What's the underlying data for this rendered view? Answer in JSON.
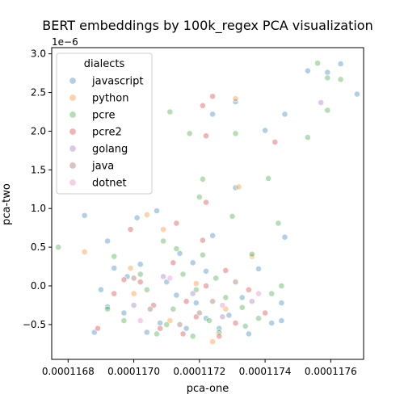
{
  "chart_data": {
    "type": "scatter",
    "title": "BERT embeddings by 100k_regex PCA visualization",
    "xlabel": "pca-one",
    "ylabel": "pca-two",
    "y_scale_note": "1e−6",
    "xlim": [
      0.00011675,
      0.0001177
    ],
    "ylim": [
      -9.5e-07,
      3.08e-06
    ],
    "xticks": [
      0.0001168,
      0.000117,
      0.0001172,
      0.0001174,
      0.0001176
    ],
    "xtick_labels": [
      "0.0001168",
      "0.0001170",
      "0.0001172",
      "0.0001174",
      "0.0001176"
    ],
    "yticks": [
      -5e-07,
      0.0,
      5e-07,
      1e-06,
      1.5e-06,
      2e-06,
      2.5e-06,
      3e-06
    ],
    "ytick_labels": [
      "−0.5",
      "0.0",
      "0.5",
      "1.0",
      "1.5",
      "2.0",
      "2.5",
      "3.0"
    ],
    "legend": {
      "title": "dialects",
      "placement": "top-left"
    },
    "series": [
      {
        "name": "javascript",
        "color": "#1f77b4",
        "points": [
          [
            0.00011763,
            2.87e-06
          ],
          [
            0.00011759,
            2.76e-06
          ],
          [
            0.00011768,
            2.48e-06
          ],
          [
            0.00011753,
            2.78e-06
          ],
          [
            0.00011731,
            2.38e-06
          ],
          [
            0.00011724,
            2.22e-06
          ],
          [
            0.0001174,
            2.01e-06
          ],
          [
            0.00011746,
            2.22e-06
          ],
          [
            0.00011731,
            1.27e-06
          ],
          [
            0.00011746,
            6.3e-07
          ],
          [
            0.00011701,
            8.8e-07
          ],
          [
            0.00011685,
            9.1e-07
          ],
          [
            0.00011707,
            9.7e-07
          ],
          [
            0.00011724,
            6.5e-07
          ],
          [
            0.00011692,
            5.8e-07
          ],
          [
            0.00011714,
            4.2e-07
          ],
          [
            0.00011702,
            2.8e-07
          ],
          [
            0.00011722,
            1.9e-07
          ],
          [
            0.00011738,
            2.2e-07
          ],
          [
            0.0001169,
            -5e-08
          ],
          [
            0.00011697,
            -3.5e-07
          ],
          [
            0.00011708,
            -4.8e-07
          ],
          [
            0.00011719,
            -2.2e-07
          ],
          [
            0.00011729,
            -3.8e-07
          ],
          [
            0.00011735,
            -6.2e-07
          ],
          [
            0.00011742,
            -4.8e-07
          ],
          [
            0.00011745,
            -4.5e-07
          ],
          [
            0.00011745,
            -2.2e-07
          ],
          [
            0.00011688,
            -6e-07
          ],
          [
            0.00011692,
            -2.7e-07
          ],
          [
            0.00011713,
            -1.2e-07
          ],
          [
            0.00011726,
            -5.5e-07
          ],
          [
            0.0001171,
            5e-08
          ],
          [
            0.00011698,
            1.2e-07
          ],
          [
            0.00011716,
            -5.5e-07
          ],
          [
            0.00011733,
            -1.5e-07
          ],
          [
            0.00011704,
            -6e-07
          ],
          [
            0.00011722,
            -4.2e-07
          ],
          [
            0.00011718,
            3e-07
          ],
          [
            0.00011694,
            2.3e-07
          ]
        ]
      },
      {
        "name": "python",
        "color": "#ff7f0e",
        "points": [
          [
            0.00011731,
            2.42e-06
          ],
          [
            0.00011732,
            1.28e-06
          ],
          [
            0.00011685,
            4.4e-07
          ],
          [
            0.00011704,
            9.2e-07
          ],
          [
            0.00011709,
            7.3e-07
          ],
          [
            0.00011724,
            -7.2e-07
          ],
          [
            0.00011699,
            2.3e-07
          ],
          [
            0.00011719,
            3e-08
          ],
          [
            0.00011711,
            -4.5e-07
          ],
          [
            0.00011728,
            -3e-07
          ],
          [
            0.000117,
            -1e-07
          ],
          [
            0.00011736,
            3.8e-07
          ]
        ]
      },
      {
        "name": "pcre",
        "color": "#2ca02c",
        "points": [
          [
            0.00011756,
            2.88e-06
          ],
          [
            0.00011763,
            2.67e-06
          ],
          [
            0.00011759,
            2.69e-06
          ],
          [
            0.00011759,
            2.27e-06
          ],
          [
            0.00011711,
            2.25e-06
          ],
          [
            0.00011717,
            1.97e-06
          ],
          [
            0.00011731,
            1.97e-06
          ],
          [
            0.00011753,
            1.92e-06
          ],
          [
            0.00011721,
            1.38e-06
          ],
          [
            0.00011741,
            1.39e-06
          ],
          [
            0.00011744,
            8.1e-07
          ],
          [
            0.0001173,
            9e-07
          ],
          [
            0.0001172,
            1.15e-06
          ],
          [
            0.00011677,
            5e-07
          ],
          [
            0.00011694,
            3.8e-07
          ],
          [
            0.00011709,
            5.8e-07
          ],
          [
            0.00011721,
            4e-07
          ],
          [
            0.00011736,
            4.1e-07
          ],
          [
            0.00011745,
            0.0
          ],
          [
            0.00011742,
            -1e-07
          ],
          [
            0.00011704,
            -5e-08
          ],
          [
            0.00011712,
            -3e-07
          ],
          [
            0.00011723,
            -4.5e-07
          ],
          [
            0.00011697,
            -4.5e-07
          ],
          [
            0.00011734,
            -5.2e-07
          ],
          [
            0.00011718,
            -6.5e-07
          ],
          [
            0.00011702,
            1.5e-07
          ],
          [
            0.00011728,
            -1.5e-07
          ],
          [
            0.00011713,
            4.8e-07
          ],
          [
            0.00011707,
            -6.2e-07
          ],
          [
            0.00011738,
            -4.2e-07
          ],
          [
            0.00011715,
            1.5e-07
          ],
          [
            0.00011692,
            -3e-07
          ],
          [
            0.00011725,
            1e-07
          ],
          [
            0.00011733,
            -2.8e-07
          ],
          [
            0.00011719,
            -5e-08
          ],
          [
            0.0001171,
            -5e-07
          ],
          [
            0.00011726,
            -6e-07
          ]
        ]
      },
      {
        "name": "pcre2",
        "color": "#d62728",
        "points": [
          [
            0.00011721,
            2.33e-06
          ],
          [
            0.00011724,
            2.45e-06
          ],
          [
            0.00011722,
            1.94e-06
          ],
          [
            0.00011743,
            1.86e-06
          ],
          [
            0.00011722,
            1.08e-06
          ],
          [
            0.00011713,
            8.1e-07
          ],
          [
            0.00011721,
            5.9e-07
          ],
          [
            0.00011699,
            7.3e-07
          ],
          [
            0.00011689,
            -5.5e-07
          ],
          [
            0.00011694,
            -1e-07
          ],
          [
            0.00011706,
            -2.5e-07
          ],
          [
            0.00011716,
            -2e-07
          ],
          [
            0.00011728,
            2e-07
          ],
          [
            0.00011735,
            -5e-08
          ],
          [
            0.00011702,
            5e-08
          ],
          [
            0.00011719,
            -4e-07
          ],
          [
            0.00011726,
            -6.5e-07
          ],
          [
            0.0001174,
            -3.5e-07
          ],
          [
            0.00011712,
            3e-07
          ],
          [
            0.00011697,
            8e-08
          ],
          [
            0.00011731,
            -4.8e-07
          ],
          [
            0.00011708,
            -5.5e-07
          ],
          [
            0.00011722,
            0.0
          ],
          [
            0.00011715,
            -6.2e-07
          ]
        ]
      },
      {
        "name": "golang",
        "color": "#9467bd",
        "points": [
          [
            0.00011757,
            2.37e-06
          ],
          [
            0.000117,
            -2.5e-07
          ],
          [
            0.00011718,
            -1e-07
          ],
          [
            0.00011727,
            -4e-07
          ],
          [
            0.00011709,
            1.2e-07
          ],
          [
            0.00011736,
            -2e-07
          ]
        ]
      },
      {
        "name": "java",
        "color": "#8c564b",
        "points": [
          [
            0.00011705,
            -3e-07
          ],
          [
            0.00011724,
            -2e-07
          ],
          [
            0.00011714,
            -5e-07
          ],
          [
            0.00011731,
            5e-08
          ],
          [
            0.000117,
            1e-07
          ],
          [
            0.0001172,
            -3.5e-07
          ]
        ]
      },
      {
        "name": "dotnet",
        "color": "#e377c2",
        "points": [
          [
            0.00011711,
            1e-07
          ],
          [
            0.00011727,
            -2.5e-07
          ],
          [
            0.00011702,
            -4.5e-07
          ],
          [
            0.00011738,
            -1e-07
          ]
        ]
      }
    ]
  }
}
